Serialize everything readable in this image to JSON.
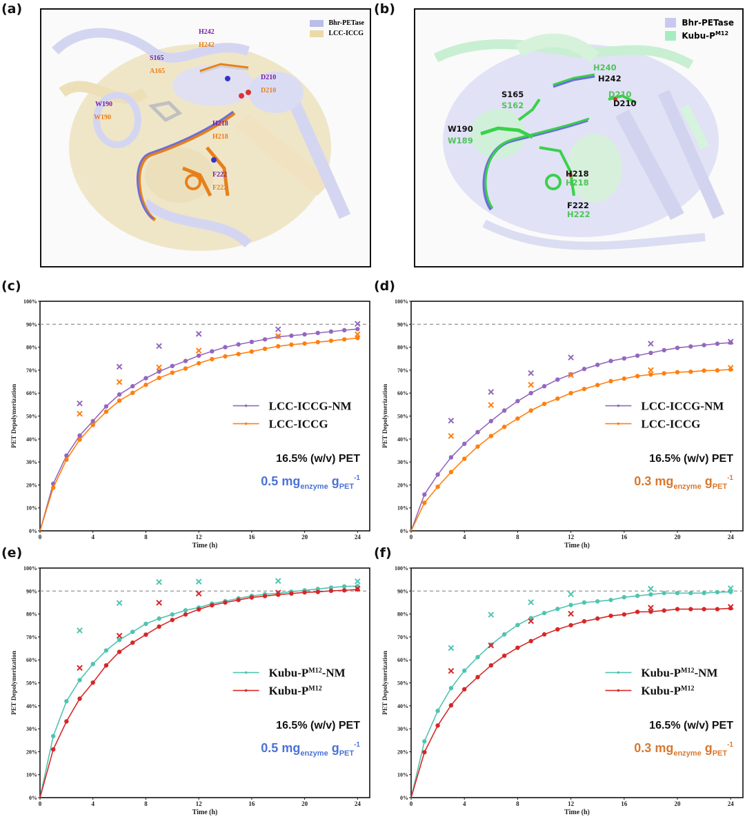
{
  "panels": {
    "a": {
      "label": "(a)",
      "legend": [
        {
          "name": "Bhr-PETase",
          "color": "#b9bde8"
        },
        {
          "name": "LCC-ICCG",
          "color": "#ecd9a6"
        }
      ],
      "residues": [
        {
          "top": "H242",
          "bottom": "H242"
        },
        {
          "top": "S165",
          "bottom": "A165"
        },
        {
          "top": "D210",
          "bottom": "D210"
        },
        {
          "top": "W190",
          "bottom": "W190"
        },
        {
          "top": "H218",
          "bottom": "H218"
        },
        {
          "top": "F222",
          "bottom": "F222"
        }
      ],
      "top_color": "#7a1fa2",
      "bottom_color": "#e8801a"
    },
    "b": {
      "label": "(b)",
      "legend": [
        {
          "name": "Bhr-PETase",
          "color": "#c9c8f0"
        },
        {
          "name": "Kubu-P",
          "sup": "M12",
          "color": "#a6ecc0"
        }
      ],
      "residues": [
        {
          "first": "H240",
          "second": "H242",
          "first_color": "green"
        },
        {
          "first": "S165",
          "second": "S162",
          "first_color": "black"
        },
        {
          "first": "D210",
          "second": "D210",
          "first_color": "green"
        },
        {
          "first": "W190",
          "second": "W189",
          "first_color": "black"
        },
        {
          "first": "H218",
          "second": "H218",
          "first_color": "black"
        },
        {
          "first": "F222",
          "second": "H222",
          "first_color": "black"
        }
      ],
      "green": "#4fc45a",
      "black": "#111111"
    }
  },
  "chart_data": [
    {
      "id": "c",
      "panel_label": "(c)",
      "type": "line",
      "xlabel": "Time (h)",
      "ylabel": "PET Depolymerization",
      "xlim": [
        0,
        24
      ],
      "ylim": [
        0,
        100
      ],
      "xticks": [
        0,
        4,
        8,
        12,
        16,
        20,
        24
      ],
      "yticks": [
        "0%",
        "10%",
        "20%",
        "30%",
        "40%",
        "50%",
        "60%",
        "70%",
        "80%",
        "90%",
        "100%"
      ],
      "reference_line": 90,
      "annotation_line1": "16.5% (w/v) PET",
      "annotation_line2": {
        "main": "0.5 mg",
        "sub1": "enzyme",
        "mid": " g",
        "sub2": "PET",
        "sup": "-1",
        "color": "#4a72d6"
      },
      "x": [
        0,
        1,
        2,
        3,
        4,
        5,
        6,
        7,
        8,
        9,
        10,
        11,
        12,
        13,
        14,
        15,
        16,
        17,
        18,
        19,
        20,
        21,
        22,
        23,
        24
      ],
      "series": [
        {
          "name": "LCC-ICCG-NM",
          "color": "#9467bd",
          "values": [
            0,
            20.5,
            32.8,
            41.5,
            47.8,
            54.2,
            59.4,
            63.0,
            66.5,
            69.4,
            71.8,
            74.0,
            76.3,
            78.2,
            80.0,
            81.2,
            82.3,
            83.4,
            84.6,
            85.0,
            85.6,
            86.2,
            86.8,
            87.4,
            87.9
          ],
          "markers_x": {
            "x": [
              3,
              6,
              9,
              12,
              18,
              24
            ],
            "values": [
              55.5,
              71.5,
              80.5,
              85.8,
              87.8,
              90.2
            ]
          }
        },
        {
          "name": "LCC-ICCG",
          "color": "#ff7f0e",
          "values": [
            0,
            18.8,
            31.0,
            39.7,
            46.1,
            51.9,
            56.7,
            60.1,
            63.6,
            66.6,
            68.9,
            70.7,
            73.0,
            74.8,
            76.0,
            77.0,
            78.1,
            79.3,
            80.4,
            81.1,
            81.6,
            82.2,
            82.8,
            83.4,
            84.0
          ],
          "markers_x": {
            "x": [
              3,
              6,
              9,
              12,
              18,
              24
            ],
            "values": [
              51.0,
              64.8,
              71.2,
              78.5,
              84.8,
              85.6
            ]
          }
        }
      ]
    },
    {
      "id": "d",
      "panel_label": "(d)",
      "type": "line",
      "xlabel": "Time (h)",
      "ylabel": "PET Depolymerization",
      "xlim": [
        0,
        24
      ],
      "ylim": [
        0,
        100
      ],
      "xticks": [
        0,
        4,
        8,
        12,
        16,
        20,
        24
      ],
      "yticks": [
        "0%",
        "10%",
        "20%",
        "30%",
        "40%",
        "50%",
        "60%",
        "70%",
        "80%",
        "90%",
        "100%"
      ],
      "reference_line": 90,
      "annotation_line1": "16.5% (w/v) PET",
      "annotation_line2": {
        "main": "0.3 mg",
        "sub1": "enzyme",
        "mid": " g",
        "sub2": "PET",
        "sup": "-1",
        "color": "#d9782d"
      },
      "x": [
        0,
        1,
        2,
        3,
        4,
        5,
        6,
        7,
        8,
        9,
        10,
        11,
        12,
        13,
        14,
        15,
        16,
        17,
        18,
        19,
        20,
        21,
        22,
        23,
        24
      ],
      "series": [
        {
          "name": "LCC-ICCG-NM",
          "color": "#9467bd",
          "values": [
            0,
            15.8,
            24.5,
            32.0,
            37.9,
            43.0,
            47.8,
            52.4,
            56.5,
            60.0,
            63.0,
            65.9,
            68.1,
            70.5,
            72.3,
            74.0,
            75.1,
            76.3,
            77.5,
            78.7,
            79.7,
            80.3,
            80.9,
            81.5,
            82.0
          ],
          "markers_x": {
            "x": [
              3,
              6,
              9,
              12,
              18,
              24
            ],
            "values": [
              48.0,
              60.5,
              68.7,
              75.5,
              81.5,
              82.4
            ]
          }
        },
        {
          "name": "LCC-ICCG",
          "color": "#ff7f0e",
          "values": [
            0,
            12.2,
            19.2,
            25.6,
            31.4,
            36.7,
            41.3,
            45.3,
            48.9,
            52.4,
            55.3,
            57.6,
            60.0,
            61.8,
            63.5,
            65.2,
            66.3,
            67.4,
            68.1,
            68.6,
            69.1,
            69.3,
            69.8,
            69.9,
            70.3
          ],
          "markers_x": {
            "x": [
              3,
              6,
              9,
              12,
              18,
              24
            ],
            "values": [
              41.3,
              54.8,
              63.6,
              67.8,
              70.0,
              71.0
            ]
          }
        }
      ]
    },
    {
      "id": "e",
      "panel_label": "(e)",
      "type": "line",
      "xlabel": "Time (h)",
      "ylabel": "PET Depolymerization",
      "xlim": [
        0,
        24
      ],
      "ylim": [
        0,
        100
      ],
      "xticks": [
        0,
        4,
        8,
        12,
        16,
        20,
        24
      ],
      "yticks": [
        "0%",
        "10%",
        "20%",
        "30%",
        "40%",
        "50%",
        "60%",
        "70%",
        "80%",
        "90%",
        "100%"
      ],
      "reference_line": 90,
      "annotation_line1": "16.5% (w/v) PET",
      "annotation_line2": {
        "main": "0.5 mg",
        "sub1": "enzyme",
        "mid": " g",
        "sub2": "PET",
        "sup": "-1",
        "color": "#4a72d6"
      },
      "x": [
        0,
        1,
        2,
        3,
        4,
        5,
        6,
        7,
        8,
        9,
        10,
        11,
        12,
        13,
        14,
        15,
        16,
        17,
        18,
        19,
        20,
        21,
        22,
        23,
        24
      ],
      "series": [
        {
          "name": "Kubu-P",
          "sup": "M12",
          "suffix": "-NM",
          "color": "#4fc4b0",
          "values": [
            0,
            26.8,
            42.0,
            51.2,
            58.2,
            64.1,
            68.7,
            72.2,
            75.7,
            78.0,
            79.8,
            81.6,
            82.8,
            84.5,
            85.6,
            86.8,
            87.9,
            88.6,
            89.0,
            89.7,
            90.3,
            90.9,
            91.5,
            92.0,
            92.1
          ],
          "markers_x": {
            "x": [
              3,
              6,
              9,
              12,
              18,
              24
            ],
            "values": [
              72.8,
              84.8,
              93.9,
              94.1,
              94.4,
              94.2
            ]
          }
        },
        {
          "name": "Kubu-P",
          "sup": "M12",
          "suffix": "",
          "color": "#d62728",
          "values": [
            0,
            21.0,
            33.2,
            43.1,
            50.1,
            57.6,
            63.5,
            67.5,
            71.0,
            74.5,
            77.4,
            79.8,
            82.0,
            83.8,
            85.0,
            86.1,
            87.2,
            87.8,
            88.4,
            88.9,
            89.4,
            89.6,
            90.1,
            90.3,
            90.7
          ],
          "markers_x": {
            "x": [
              3,
              6,
              9,
              12,
              18,
              24
            ],
            "values": [
              56.5,
              70.5,
              84.9,
              88.9,
              89.3,
              91.0
            ]
          }
        }
      ]
    },
    {
      "id": "f",
      "panel_label": "(f)",
      "type": "line",
      "xlabel": "Time (h)",
      "ylabel": "PET Depolymerization",
      "xlim": [
        0,
        24
      ],
      "ylim": [
        0,
        100
      ],
      "xticks": [
        0,
        4,
        8,
        12,
        16,
        20,
        24
      ],
      "yticks": [
        "0%",
        "10%",
        "20%",
        "30%",
        "40%",
        "50%",
        "60%",
        "70%",
        "80%",
        "90%",
        "100%"
      ],
      "reference_line": 90,
      "annotation_line1": "16.5% (w/v) PET",
      "annotation_line2": {
        "main": "0.3 mg",
        "sub1": "enzyme",
        "mid": " g",
        "sub2": "PET",
        "sup": "-1",
        "color": "#d9782d"
      },
      "x": [
        0,
        1,
        2,
        3,
        4,
        5,
        6,
        7,
        8,
        9,
        10,
        11,
        12,
        13,
        14,
        15,
        16,
        17,
        18,
        19,
        20,
        21,
        22,
        23,
        24
      ],
      "series": [
        {
          "name": "Kubu-P",
          "sup": "M12",
          "suffix": "-NM",
          "color": "#4fc4b0",
          "values": [
            0,
            24.5,
            37.8,
            47.7,
            55.3,
            61.2,
            66.6,
            71.1,
            75.2,
            78.2,
            80.4,
            82.2,
            83.9,
            85.0,
            85.5,
            86.1,
            87.3,
            87.9,
            88.5,
            89.1,
            89.1,
            89.1,
            89.1,
            89.5,
            89.6
          ],
          "markers_x": {
            "x": [
              3,
              6,
              9,
              12,
              18,
              24
            ],
            "values": [
              65.2,
              79.7,
              85.1,
              88.6,
              91.0,
              91.2
            ]
          }
        },
        {
          "name": "Kubu-P",
          "sup": "M12",
          "suffix": "",
          "color": "#d62728",
          "values": [
            0,
            19.8,
            31.4,
            40.2,
            47.2,
            52.5,
            57.6,
            61.8,
            65.3,
            68.2,
            71.1,
            73.3,
            75.1,
            76.8,
            78.0,
            79.2,
            79.8,
            80.9,
            81.0,
            81.5,
            82.1,
            82.1,
            82.1,
            82.1,
            82.5
          ],
          "markers_x": {
            "x": [
              3,
              6,
              9,
              12,
              18,
              24
            ],
            "values": [
              55.2,
              66.3,
              76.9,
              80.1,
              82.7,
              83.1
            ]
          }
        }
      ]
    }
  ]
}
